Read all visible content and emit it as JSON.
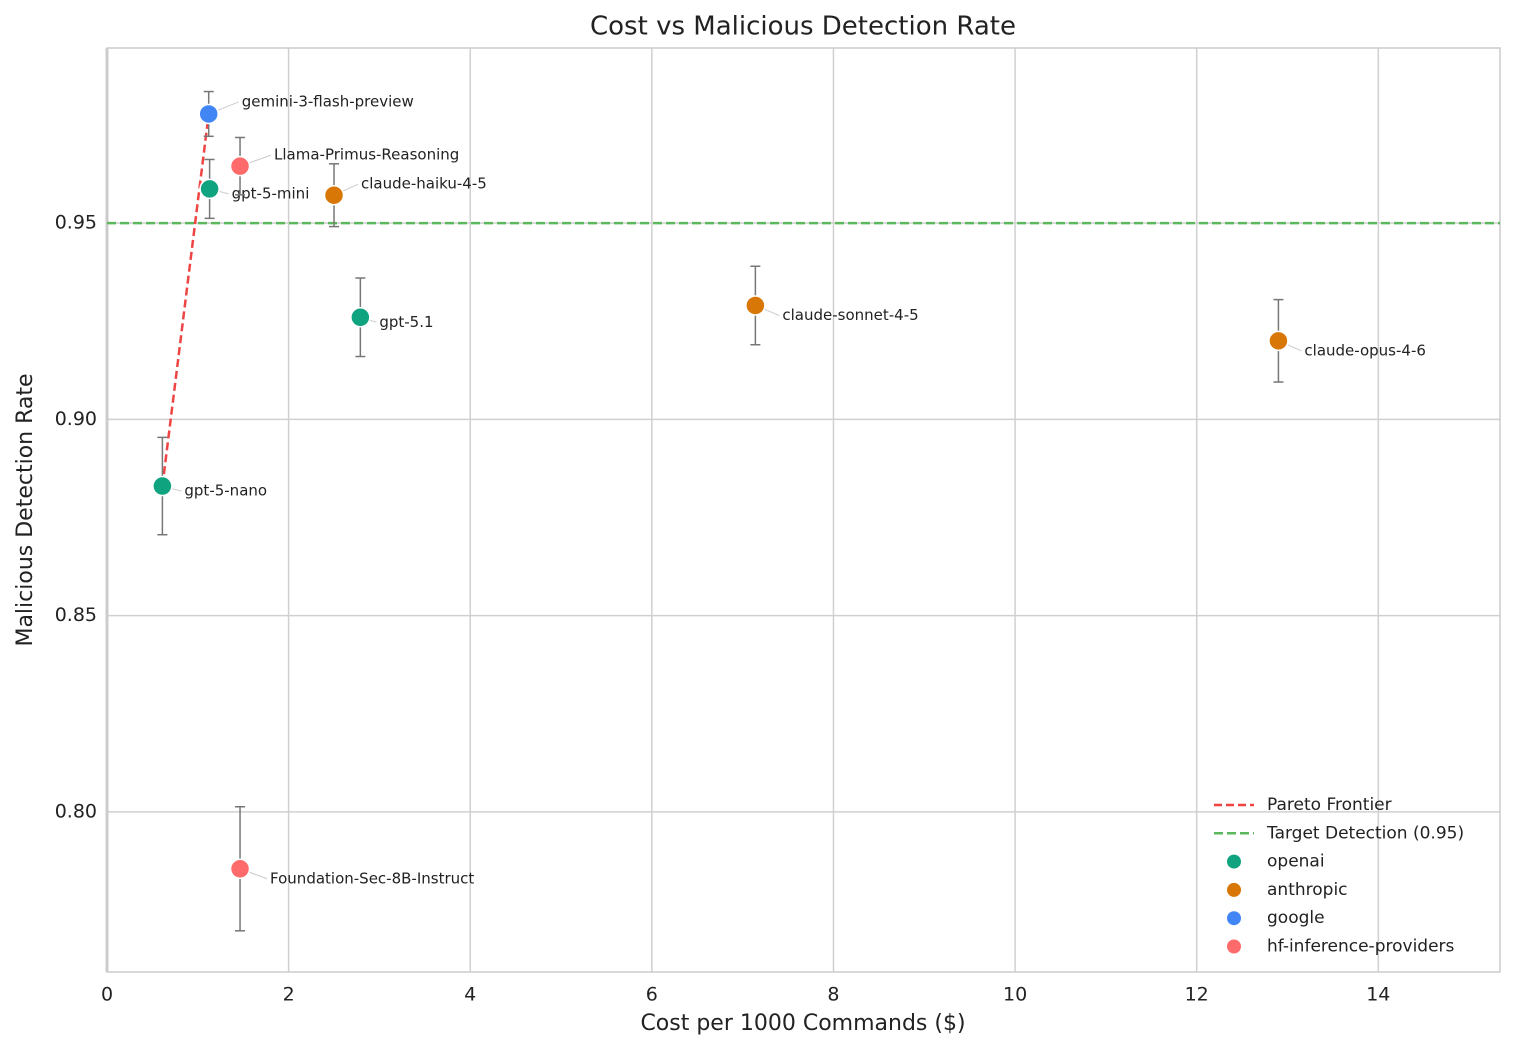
{
  "chart_data": {
    "type": "scatter",
    "title": "Cost vs Malicious Detection Rate",
    "x_label": "Cost per 1000 Commands ($)",
    "y_label": "Malicious Detection Rate",
    "xlim": [
      0,
      15.34
    ],
    "ylim": [
      0.7592,
      0.9946
    ],
    "xticks": [
      0,
      2,
      4,
      6,
      8,
      10,
      12,
      14
    ],
    "yticks": [
      {
        "value": 0.8,
        "label": "0.80"
      },
      0.85,
      {
        "value": 0.9,
        "label": "0.90"
      },
      0.95
    ],
    "grid": true,
    "legend": "lower right",
    "series": [
      {
        "name": "openai",
        "color": "#10a37f",
        "x": [
          0.61,
          1.13,
          2.79
        ],
        "values": [
          0.883,
          0.9587,
          0.926
        ],
        "errors": [
          0.0124,
          0.0075,
          0.01
        ],
        "labels": [
          "gpt-5-nano",
          "gpt-5-mini",
          "gpt-5.1"
        ]
      },
      {
        "name": "anthropic",
        "color": "#d97706",
        "x": [
          2.5,
          7.14,
          12.9
        ],
        "values": [
          0.9571,
          0.929,
          0.92
        ],
        "errors": [
          0.008,
          0.01,
          0.0105
        ],
        "labels": [
          "claude-haiku-4-5",
          "claude-sonnet-4-5",
          "claude-opus-4-6"
        ]
      },
      {
        "name": "google",
        "color": "#4285f4",
        "x": [
          1.12
        ],
        "values": [
          0.9778
        ],
        "errors": [
          0.0057
        ],
        "labels": [
          "gemini-3-flash-preview"
        ]
      },
      {
        "name": "hf-inference-providers",
        "color": "#ff6b6b",
        "x": [
          1.465,
          1.465
        ],
        "values": [
          0.9645,
          0.7855
        ],
        "errors": [
          0.0073,
          0.0158
        ],
        "labels": [
          "Llama-Primus-Reasoning",
          "Foundation-Sec-8B-Instruct"
        ]
      }
    ],
    "pareto": {
      "name": "Pareto Frontier",
      "color": "#ef4444",
      "x": [
        0.61,
        1.12
      ],
      "values": [
        0.883,
        0.9778
      ]
    },
    "target": {
      "name": "Target Detection (0.95)",
      "value": 0.95,
      "color": "#5cb85c"
    }
  }
}
